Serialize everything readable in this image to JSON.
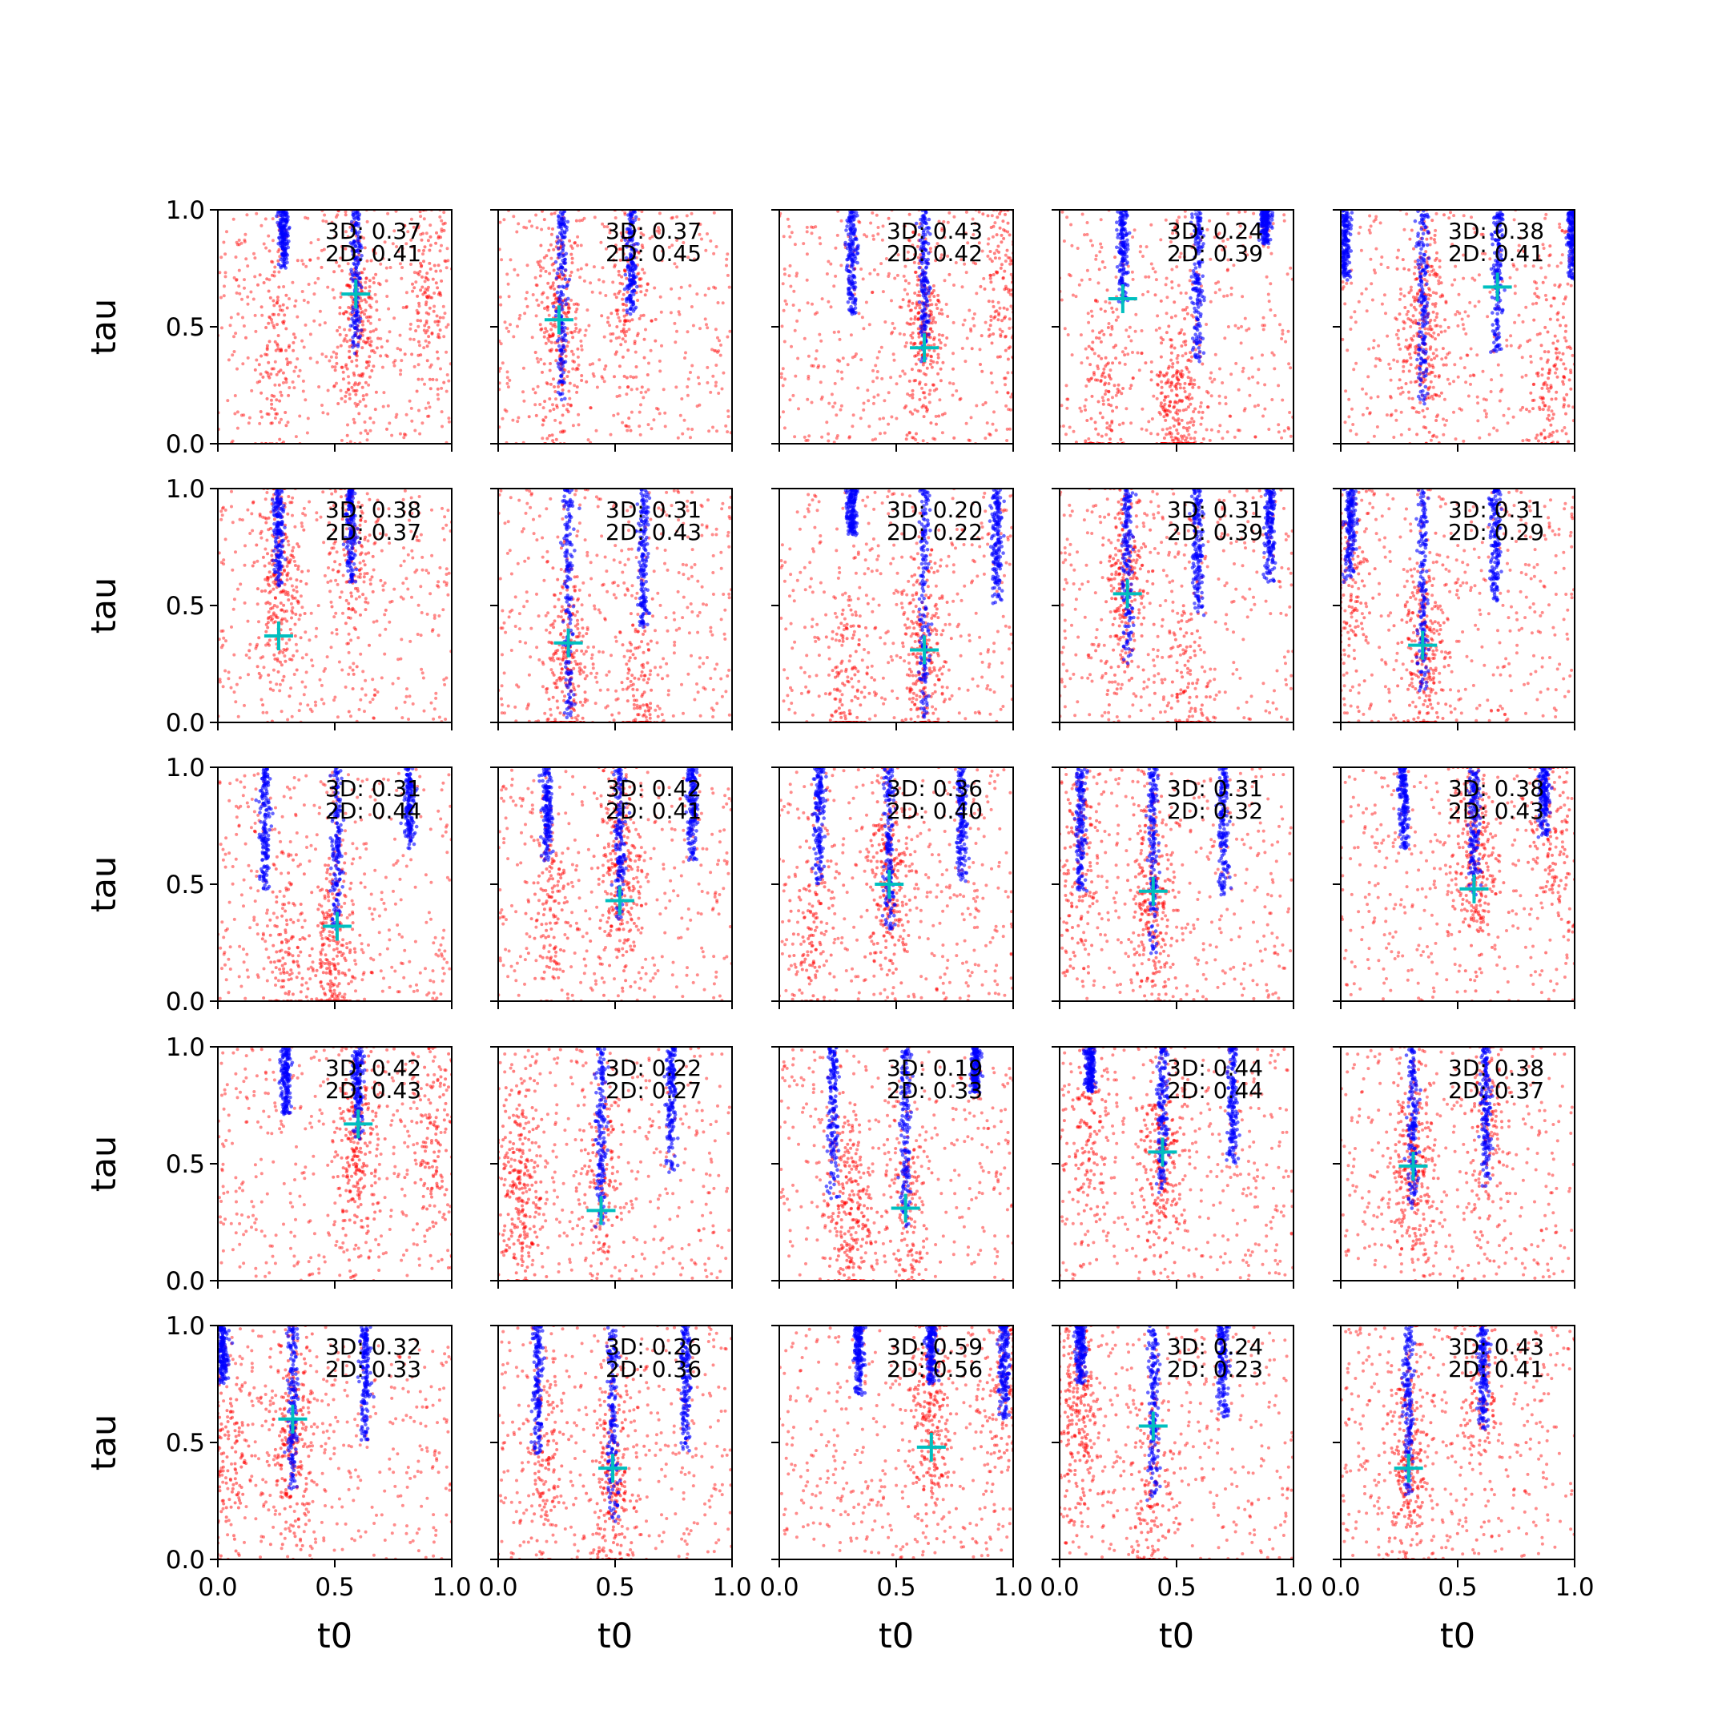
{
  "chart_data": {
    "type": "scatter",
    "layout": "grid",
    "rows": 5,
    "cols": 5,
    "xlabel": "t0",
    "ylabel": "tau",
    "xlim": [
      0,
      1
    ],
    "ylim": [
      0,
      1
    ],
    "x_ticks": [
      "0.0",
      "0.5",
      "1.0"
    ],
    "y_ticks": [
      "0.0",
      "0.5",
      "1.0"
    ],
    "grid": false,
    "colors": {
      "samples_a": "#ff0000",
      "samples_b": "#0000ff",
      "marker": "#00bfbf"
    },
    "panels": [
      {
        "row": 0,
        "col": 0,
        "label_3d": "3D: 0.37",
        "label_2d": "2D: 0.41",
        "marker": [
          0.59,
          0.64
        ],
        "blue_bands": [
          [
            0.28,
            0.75
          ],
          [
            0.59,
            0.38
          ]
        ],
        "red_clusters": [
          [
            0.6,
            0.5
          ],
          [
            0.25,
            0.4
          ],
          [
            0.9,
            0.6
          ]
        ]
      },
      {
        "row": 0,
        "col": 1,
        "label_3d": "3D: 0.37",
        "label_2d": "2D: 0.45",
        "marker": [
          0.26,
          0.53
        ],
        "blue_bands": [
          [
            0.27,
            0.17
          ],
          [
            0.57,
            0.55
          ]
        ],
        "red_clusters": [
          [
            0.26,
            0.5
          ],
          [
            0.55,
            0.6
          ]
        ]
      },
      {
        "row": 0,
        "col": 2,
        "label_3d": "3D: 0.43",
        "label_2d": "2D: 0.42",
        "marker": [
          0.62,
          0.41
        ],
        "blue_bands": [
          [
            0.31,
            0.55
          ],
          [
            0.62,
            0.35
          ]
        ],
        "red_clusters": [
          [
            0.62,
            0.5
          ],
          [
            0.95,
            0.7
          ]
        ]
      },
      {
        "row": 0,
        "col": 3,
        "label_3d": "3D: 0.24",
        "label_2d": "2D: 0.39",
        "marker": [
          0.27,
          0.62
        ],
        "blue_bands": [
          [
            0.27,
            0.6
          ],
          [
            0.59,
            0.35
          ],
          [
            0.88,
            0.85
          ]
        ],
        "red_clusters": [
          [
            0.5,
            0.15
          ],
          [
            0.2,
            0.2
          ]
        ]
      },
      {
        "row": 0,
        "col": 4,
        "label_3d": "3D: 0.38",
        "label_2d": "2D: 0.41",
        "marker": [
          0.67,
          0.67
        ],
        "blue_bands": [
          [
            0.35,
            0.15
          ],
          [
            0.67,
            0.38
          ],
          [
            0.02,
            0.7
          ],
          [
            0.99,
            0.7
          ]
        ],
        "red_clusters": [
          [
            0.35,
            0.5
          ],
          [
            0.9,
            0.3
          ]
        ]
      },
      {
        "row": 1,
        "col": 0,
        "label_3d": "3D: 0.38",
        "label_2d": "2D: 0.37",
        "marker": [
          0.26,
          0.37
        ],
        "blue_bands": [
          [
            0.26,
            0.58
          ],
          [
            0.57,
            0.6
          ]
        ],
        "red_clusters": [
          [
            0.26,
            0.6
          ],
          [
            0.57,
            0.7
          ]
        ]
      },
      {
        "row": 1,
        "col": 1,
        "label_3d": "3D: 0.31",
        "label_2d": "2D: 0.43",
        "marker": [
          0.3,
          0.34
        ],
        "blue_bands": [
          [
            0.3,
            0.02
          ],
          [
            0.62,
            0.4
          ]
        ],
        "red_clusters": [
          [
            0.3,
            0.2
          ],
          [
            0.6,
            0.1
          ]
        ]
      },
      {
        "row": 1,
        "col": 2,
        "label_3d": "3D: 0.20",
        "label_2d": "2D: 0.22",
        "marker": [
          0.62,
          0.31
        ],
        "blue_bands": [
          [
            0.31,
            0.8
          ],
          [
            0.62,
            0.0
          ],
          [
            0.93,
            0.5
          ]
        ],
        "red_clusters": [
          [
            0.62,
            0.25
          ],
          [
            0.3,
            0.1
          ]
        ]
      },
      {
        "row": 1,
        "col": 3,
        "label_3d": "3D: 0.31",
        "label_2d": "2D: 0.39",
        "marker": [
          0.29,
          0.55
        ],
        "blue_bands": [
          [
            0.29,
            0.25
          ],
          [
            0.59,
            0.45
          ],
          [
            0.9,
            0.6
          ]
        ],
        "red_clusters": [
          [
            0.28,
            0.6
          ],
          [
            0.55,
            0.1
          ]
        ]
      },
      {
        "row": 1,
        "col": 4,
        "label_3d": "3D: 0.31",
        "label_2d": "2D: 0.29",
        "marker": [
          0.35,
          0.33
        ],
        "blue_bands": [
          [
            0.04,
            0.6
          ],
          [
            0.35,
            0.1
          ],
          [
            0.66,
            0.5
          ]
        ],
        "red_clusters": [
          [
            0.35,
            0.3
          ],
          [
            0.05,
            0.6
          ]
        ]
      },
      {
        "row": 2,
        "col": 0,
        "label_3d": "3D: 0.31",
        "label_2d": "2D: 0.44",
        "marker": [
          0.51,
          0.32
        ],
        "blue_bands": [
          [
            0.2,
            0.45
          ],
          [
            0.51,
            0.3
          ],
          [
            0.82,
            0.65
          ]
        ],
        "red_clusters": [
          [
            0.5,
            0.2
          ],
          [
            0.3,
            0.2
          ]
        ]
      },
      {
        "row": 2,
        "col": 1,
        "label_3d": "3D: 0.42",
        "label_2d": "2D: 0.41",
        "marker": [
          0.52,
          0.43
        ],
        "blue_bands": [
          [
            0.21,
            0.6
          ],
          [
            0.52,
            0.35
          ],
          [
            0.83,
            0.6
          ]
        ],
        "red_clusters": [
          [
            0.52,
            0.55
          ],
          [
            0.22,
            0.4
          ]
        ]
      },
      {
        "row": 2,
        "col": 2,
        "label_3d": "3D: 0.36",
        "label_2d": "2D: 0.40",
        "marker": [
          0.47,
          0.5
        ],
        "blue_bands": [
          [
            0.17,
            0.5
          ],
          [
            0.47,
            0.3
          ],
          [
            0.78,
            0.5
          ]
        ],
        "red_clusters": [
          [
            0.47,
            0.5
          ],
          [
            0.15,
            0.3
          ]
        ]
      },
      {
        "row": 2,
        "col": 3,
        "label_3d": "3D: 0.31",
        "label_2d": "2D: 0.32",
        "marker": [
          0.4,
          0.47
        ],
        "blue_bands": [
          [
            0.09,
            0.45
          ],
          [
            0.4,
            0.2
          ],
          [
            0.7,
            0.45
          ]
        ],
        "red_clusters": [
          [
            0.4,
            0.45
          ],
          [
            0.08,
            0.6
          ]
        ]
      },
      {
        "row": 2,
        "col": 4,
        "label_3d": "3D: 0.38",
        "label_2d": "2D: 0.43",
        "marker": [
          0.57,
          0.48
        ],
        "blue_bands": [
          [
            0.27,
            0.65
          ],
          [
            0.57,
            0.45
          ],
          [
            0.87,
            0.7
          ]
        ],
        "red_clusters": [
          [
            0.57,
            0.6
          ],
          [
            0.9,
            0.7
          ]
        ]
      },
      {
        "row": 3,
        "col": 0,
        "label_3d": "3D: 0.42",
        "label_2d": "2D: 0.43",
        "marker": [
          0.6,
          0.67
        ],
        "blue_bands": [
          [
            0.29,
            0.7
          ],
          [
            0.6,
            0.6
          ]
        ],
        "red_clusters": [
          [
            0.6,
            0.55
          ],
          [
            0.92,
            0.6
          ]
        ]
      },
      {
        "row": 3,
        "col": 1,
        "label_3d": "3D: 0.22",
        "label_2d": "2D: 0.27",
        "marker": [
          0.44,
          0.3
        ],
        "blue_bands": [
          [
            0.44,
            0.2
          ],
          [
            0.74,
            0.45
          ]
        ],
        "red_clusters": [
          [
            0.1,
            0.4
          ],
          [
            0.44,
            0.4
          ]
        ]
      },
      {
        "row": 3,
        "col": 2,
        "label_3d": "3D: 0.19",
        "label_2d": "2D: 0.33",
        "marker": [
          0.54,
          0.31
        ],
        "blue_bands": [
          [
            0.23,
            0.35
          ],
          [
            0.54,
            0.22
          ],
          [
            0.84,
            0.8
          ]
        ],
        "red_clusters": [
          [
            0.3,
            0.3
          ],
          [
            0.54,
            0.3
          ]
        ]
      },
      {
        "row": 3,
        "col": 3,
        "label_3d": "3D: 0.44",
        "label_2d": "2D: 0.44",
        "marker": [
          0.44,
          0.55
        ],
        "blue_bands": [
          [
            0.13,
            0.8
          ],
          [
            0.44,
            0.35
          ],
          [
            0.74,
            0.5
          ]
        ],
        "red_clusters": [
          [
            0.44,
            0.5
          ],
          [
            0.12,
            0.6
          ]
        ]
      },
      {
        "row": 3,
        "col": 4,
        "label_3d": "3D: 0.38",
        "label_2d": "2D: 0.37",
        "marker": [
          0.31,
          0.49
        ],
        "blue_bands": [
          [
            0.31,
            0.3
          ],
          [
            0.62,
            0.4
          ]
        ],
        "red_clusters": [
          [
            0.31,
            0.5
          ],
          [
            0.62,
            0.6
          ]
        ]
      },
      {
        "row": 4,
        "col": 0,
        "label_3d": "3D: 0.32",
        "label_2d": "2D: 0.33",
        "marker": [
          0.32,
          0.6
        ],
        "blue_bands": [
          [
            0.02,
            0.75
          ],
          [
            0.32,
            0.3
          ],
          [
            0.63,
            0.5
          ]
        ],
        "red_clusters": [
          [
            0.32,
            0.5
          ],
          [
            0.05,
            0.4
          ]
        ]
      },
      {
        "row": 4,
        "col": 1,
        "label_3d": "3D: 0.26",
        "label_2d": "2D: 0.36",
        "marker": [
          0.49,
          0.39
        ],
        "blue_bands": [
          [
            0.17,
            0.45
          ],
          [
            0.49,
            0.15
          ],
          [
            0.8,
            0.45
          ]
        ],
        "red_clusters": [
          [
            0.49,
            0.35
          ],
          [
            0.2,
            0.4
          ]
        ]
      },
      {
        "row": 4,
        "col": 2,
        "label_3d": "3D: 0.59",
        "label_2d": "2D: 0.56",
        "marker": [
          0.65,
          0.48
        ],
        "blue_bands": [
          [
            0.34,
            0.7
          ],
          [
            0.65,
            0.75
          ],
          [
            0.96,
            0.6
          ]
        ],
        "red_clusters": [
          [
            0.65,
            0.6
          ],
          [
            0.95,
            0.7
          ]
        ]
      },
      {
        "row": 4,
        "col": 3,
        "label_3d": "3D: 0.24",
        "label_2d": "2D: 0.23",
        "marker": [
          0.4,
          0.57
        ],
        "blue_bands": [
          [
            0.09,
            0.75
          ],
          [
            0.4,
            0.25
          ],
          [
            0.7,
            0.6
          ]
        ],
        "red_clusters": [
          [
            0.08,
            0.6
          ],
          [
            0.4,
            0.3
          ]
        ]
      },
      {
        "row": 4,
        "col": 4,
        "label_3d": "3D: 0.43",
        "label_2d": "2D: 0.41",
        "marker": [
          0.29,
          0.39
        ],
        "blue_bands": [
          [
            0.29,
            0.25
          ],
          [
            0.61,
            0.55
          ]
        ],
        "red_clusters": [
          [
            0.29,
            0.4
          ],
          [
            0.6,
            0.7
          ]
        ]
      }
    ]
  }
}
